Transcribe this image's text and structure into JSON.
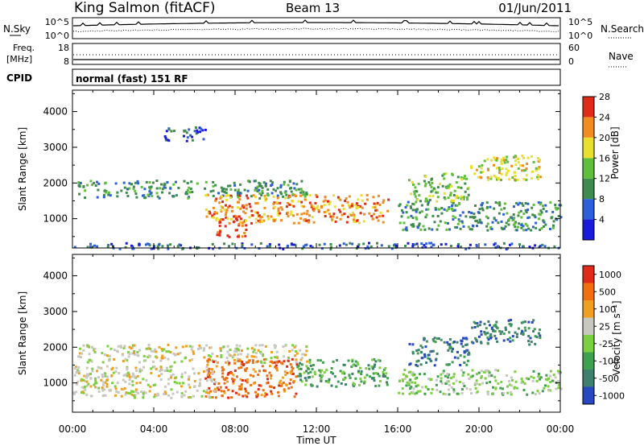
{
  "header": {
    "station": "King Salmon (fitACF)",
    "beam": "Beam 13",
    "date": "01/Jun/2011"
  },
  "strip_nsky": {
    "left_label": "N.Sky",
    "left_ticks": [
      "10^5",
      "10^0"
    ],
    "right_ticks": [
      "10^5",
      "10^0"
    ],
    "right_label": "N.Search"
  },
  "strip_freq": {
    "left_label_1": "Freq.",
    "left_label_2": "[MHz]",
    "left_ticks": [
      "18",
      "8"
    ],
    "right_ticks": [
      "60",
      "0"
    ],
    "right_label": "Nave"
  },
  "strip_cpid": {
    "label": "CPID",
    "text": "normal (fast) 151 RF"
  },
  "chart_data": [
    {
      "type": "heatmap",
      "name": "power",
      "ylabel": "Slant Range [km]",
      "xlabel": "Time UT",
      "x_ticks": [
        "00:00",
        "04:00",
        "08:00",
        "12:00",
        "16:00",
        "20:00",
        "00:00"
      ],
      "xlim_hours": [
        0,
        24
      ],
      "y_ticks": [
        1000,
        2000,
        3000,
        4000
      ],
      "ylim": [
        180,
        4600
      ],
      "colorbar": {
        "label": "Power [dB]",
        "ticks": [
          "4",
          "8",
          "12",
          "16",
          "20",
          "24",
          "28"
        ],
        "colors": [
          "#1a1adc",
          "#2e5fd8",
          "#3f8a4e",
          "#5fbf3a",
          "#e9df2e",
          "#f08c20",
          "#e02a1a"
        ]
      },
      "echo_regions": [
        {
          "t0": 0.2,
          "t1": 11.5,
          "r0": 1600,
          "r1": 2100,
          "level": 2
        },
        {
          "t0": 6.5,
          "t1": 15.5,
          "r0": 900,
          "r1": 1700,
          "level": 5
        },
        {
          "t0": 7.0,
          "t1": 8.5,
          "r0": 500,
          "r1": 1100,
          "level": 6
        },
        {
          "t0": 16.0,
          "t1": 24.0,
          "r0": 700,
          "r1": 1500,
          "level": 2
        },
        {
          "t0": 16.5,
          "t1": 19.5,
          "r0": 1500,
          "r1": 2300,
          "level": 3
        },
        {
          "t0": 19.5,
          "t1": 23.0,
          "r0": 2100,
          "r1": 2800,
          "level": 4
        },
        {
          "t0": 4.5,
          "t1": 6.5,
          "r0": 3200,
          "r1": 3600,
          "level": 1
        },
        {
          "t0": 0.0,
          "t1": 24.0,
          "r0": 180,
          "r1": 350,
          "level": 1
        }
      ]
    },
    {
      "type": "heatmap",
      "name": "velocity",
      "ylabel": "Slant Range [km]",
      "xlabel": "Time UT",
      "x_ticks": [
        "00:00",
        "04:00",
        "08:00",
        "12:00",
        "16:00",
        "20:00",
        "00:00"
      ],
      "xlim_hours": [
        0,
        24
      ],
      "y_ticks": [
        1000,
        2000,
        3000,
        4000
      ],
      "ylim": [
        180,
        4600
      ],
      "colorbar": {
        "label": "Velocity [m s^-1]",
        "ticks": [
          "1000",
          "500",
          "100",
          "25",
          "-25",
          "-100",
          "-500",
          "-1000"
        ],
        "colors": [
          "#2848c0",
          "#3f7f6e",
          "#3fa050",
          "#7ccf40",
          "#c8c8c0",
          "#f0a020",
          "#f07010",
          "#e02a1a"
        ]
      },
      "echo_regions": [
        {
          "t0": 0.2,
          "t1": 11.5,
          "r0": 1600,
          "r1": 2100,
          "level": 4
        },
        {
          "t0": 6.5,
          "t1": 11.0,
          "r0": 600,
          "r1": 1700,
          "level": 6
        },
        {
          "t0": 11.0,
          "t1": 15.5,
          "r0": 900,
          "r1": 1700,
          "level": 2
        },
        {
          "t0": 16.0,
          "t1": 24.0,
          "r0": 700,
          "r1": 1400,
          "level": 3
        },
        {
          "t0": 16.5,
          "t1": 19.5,
          "r0": 1500,
          "r1": 2300,
          "level": 1
        },
        {
          "t0": 19.5,
          "t1": 23.0,
          "r0": 2100,
          "r1": 2800,
          "level": 1
        },
        {
          "t0": 0.0,
          "t1": 7.0,
          "r0": 600,
          "r1": 1500,
          "level": 4
        }
      ]
    }
  ]
}
